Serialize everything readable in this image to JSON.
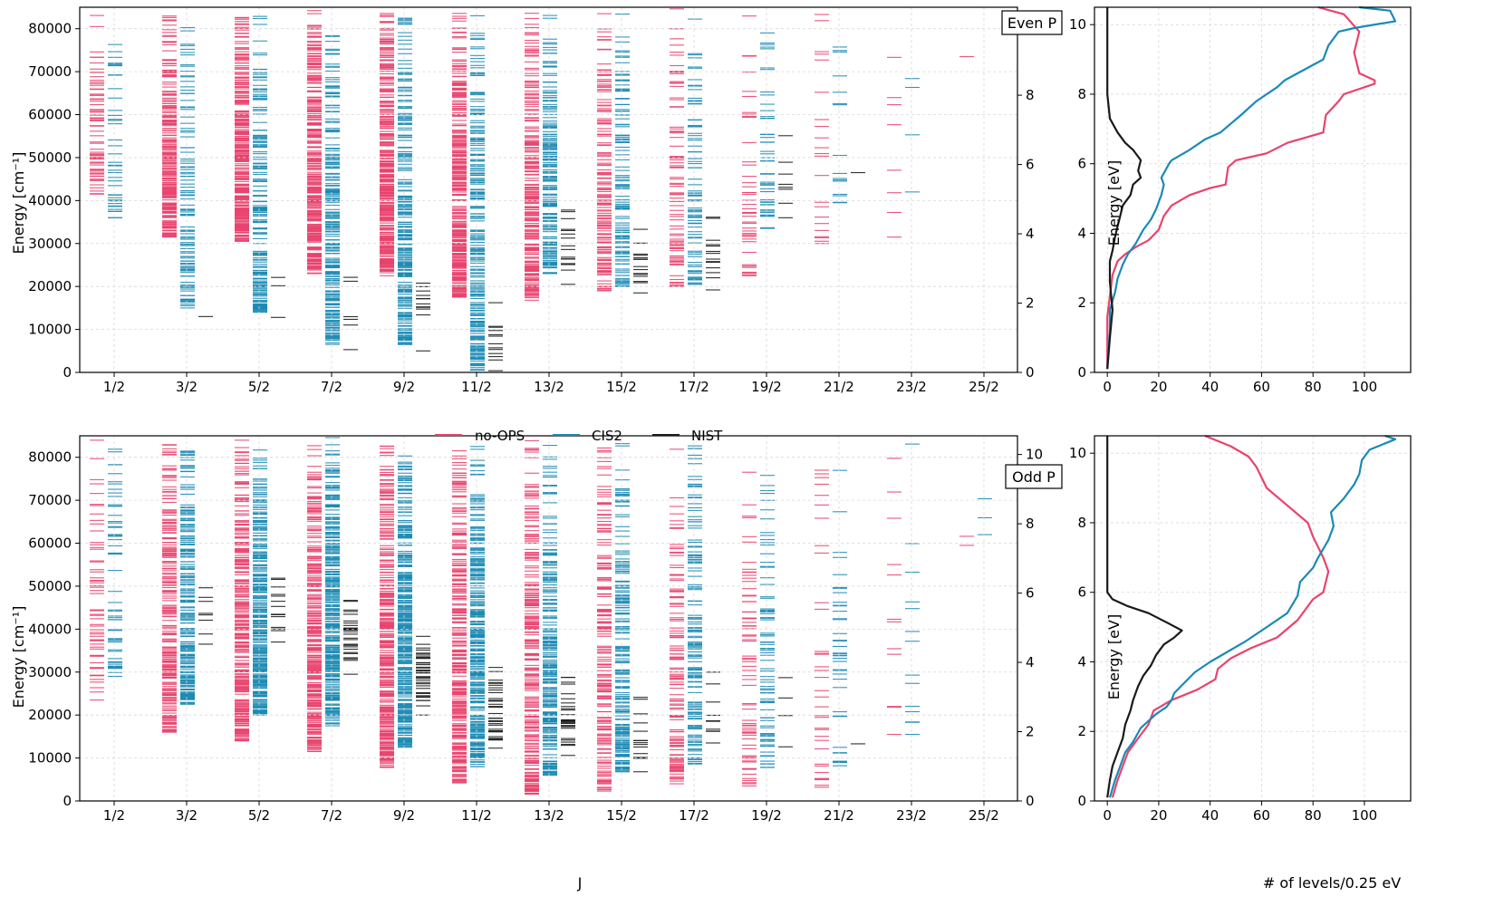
{
  "colors": {
    "no_ops": "#e8436d",
    "cis2": "#1a8ab4",
    "nist": "#1a1a1a",
    "grid": "#d8d8d8"
  },
  "legend": [
    {
      "key": "no_ops",
      "label": "no-OPS"
    },
    {
      "key": "cis2",
      "label": "CIS2"
    },
    {
      "key": "nist",
      "label": "NIST"
    }
  ],
  "shared_x_label": "J",
  "chart_data": [
    {
      "type": "level-diagram",
      "panel": "Even P",
      "box_label": "Even P",
      "xlabel": "",
      "ylabel": "Energy [cm⁻¹]",
      "ylabel_right": "Energy [eV]",
      "categories": [
        "1/2",
        "3/2",
        "5/2",
        "7/2",
        "9/2",
        "11/2",
        "13/2",
        "15/2",
        "17/2",
        "19/2",
        "21/2",
        "23/2",
        "25/2"
      ],
      "ylim": [
        0,
        85000
      ],
      "yticks": [
        "0",
        "10000",
        "20000",
        "30000",
        "40000",
        "50000",
        "60000",
        "70000",
        "80000"
      ],
      "yticks_right": [
        "0",
        "2",
        "4",
        "6",
        "8",
        "10"
      ],
      "series": [
        {
          "name": "no-OPS",
          "key": "no_ops",
          "min_energy_by_J": [
            41500,
            31500,
            30500,
            23000,
            22500,
            17500,
            16800,
            19000,
            20000,
            22500,
            30000,
            31500,
            73500
          ],
          "count_by_J": [
            70,
            260,
            300,
            320,
            350,
            330,
            240,
            150,
            80,
            45,
            22,
            8,
            1
          ]
        },
        {
          "name": "CIS2",
          "key": "cis2",
          "min_energy_by_J": [
            36000,
            15000,
            14000,
            6500,
            6500,
            500,
            23000,
            20000,
            20500,
            33500,
            39500,
            42000,
            0
          ],
          "count_by_J": [
            40,
            110,
            170,
            220,
            240,
            230,
            170,
            120,
            80,
            45,
            16,
            4,
            0
          ]
        },
        {
          "name": "NIST",
          "key": "nist",
          "min_energy_by_J": [
            null,
            13000,
            12800,
            5300,
            5000,
            400,
            20500,
            18500,
            19200,
            36000,
            46500,
            null,
            null
          ],
          "count_by_J": [
            0,
            1,
            3,
            6,
            12,
            13,
            16,
            15,
            14,
            8,
            1,
            0,
            0
          ]
        }
      ]
    },
    {
      "type": "level-diagram",
      "panel": "Odd P",
      "box_label": "Odd P",
      "xlabel": "J",
      "ylabel": "Energy [cm⁻¹]",
      "ylabel_right": "Energy [eV]",
      "categories": [
        "1/2",
        "3/2",
        "5/2",
        "7/2",
        "9/2",
        "11/2",
        "13/2",
        "15/2",
        "17/2",
        "19/2",
        "21/2",
        "23/2",
        "25/2"
      ],
      "ylim": [
        0,
        85000
      ],
      "yticks": [
        "0",
        "10000",
        "20000",
        "30000",
        "40000",
        "50000",
        "60000",
        "70000",
        "80000"
      ],
      "yticks_right": [
        "0",
        "2",
        "4",
        "6",
        "8",
        "10"
      ],
      "series": [
        {
          "name": "no-OPS",
          "key": "no_ops",
          "min_energy_by_J": [
            23500,
            16000,
            14000,
            11500,
            7800,
            4200,
            1600,
            2300,
            4000,
            3500,
            3200,
            15500,
            59500
          ],
          "count_by_J": [
            60,
            220,
            290,
            310,
            330,
            300,
            260,
            180,
            120,
            70,
            35,
            12,
            2
          ]
        },
        {
          "name": "CIS2",
          "key": "cis2",
          "min_energy_by_J": [
            29000,
            22500,
            20000,
            17500,
            12500,
            8000,
            6000,
            6800,
            8600,
            7800,
            8200,
            15500,
            62000
          ],
          "count_by_J": [
            55,
            200,
            280,
            300,
            320,
            300,
            240,
            190,
            140,
            80,
            40,
            14,
            3
          ]
        },
        {
          "name": "NIST",
          "key": "nist",
          "min_energy_by_J": [
            null,
            36500,
            37000,
            29500,
            20000,
            12300,
            10600,
            6800,
            13500,
            12600,
            13300,
            null,
            null
          ],
          "count_by_J": [
            0,
            8,
            14,
            30,
            36,
            34,
            30,
            14,
            10,
            4,
            1,
            0,
            0
          ]
        }
      ]
    },
    {
      "type": "line",
      "panel": "Even P density",
      "xlabel": "",
      "ylabel": "",
      "xlim": [
        -5,
        118
      ],
      "ylim": [
        0,
        10.5
      ],
      "xticks": [
        "0",
        "20",
        "40",
        "60",
        "80",
        "100"
      ],
      "yticks": [
        "0",
        "2",
        "4",
        "6",
        "8",
        "10"
      ],
      "series": [
        {
          "name": "no-OPS",
          "key": "no_ops",
          "points": [
            [
              0,
              0.1
            ],
            [
              0,
              1.6
            ],
            [
              1,
              2.2
            ],
            [
              2,
              2.8
            ],
            [
              4,
              3.2
            ],
            [
              7,
              3.4
            ],
            [
              11,
              3.6
            ],
            [
              16,
              3.8
            ],
            [
              20,
              4.1
            ],
            [
              22,
              4.5
            ],
            [
              25,
              4.8
            ],
            [
              32,
              5.1
            ],
            [
              40,
              5.3
            ],
            [
              46,
              5.4
            ],
            [
              47,
              5.9
            ],
            [
              50,
              6.1
            ],
            [
              62,
              6.3
            ],
            [
              70,
              6.6
            ],
            [
              84,
              6.9
            ],
            [
              85,
              7.4
            ],
            [
              90,
              7.8
            ],
            [
              92,
              8.0
            ],
            [
              104,
              8.3
            ],
            [
              104,
              8.4
            ],
            [
              98,
              8.6
            ],
            [
              96,
              9.2
            ],
            [
              98,
              9.8
            ],
            [
              92,
              10.3
            ],
            [
              82,
              10.5
            ]
          ]
        },
        {
          "name": "CIS2",
          "key": "cis2",
          "points": [
            [
              0,
              0.1
            ],
            [
              1,
              1.2
            ],
            [
              1,
              1.8
            ],
            [
              3,
              2.3
            ],
            [
              4,
              2.7
            ],
            [
              6,
              3.1
            ],
            [
              8,
              3.4
            ],
            [
              11,
              3.7
            ],
            [
              14,
              4.1
            ],
            [
              17,
              4.4
            ],
            [
              19,
              4.7
            ],
            [
              21,
              5.1
            ],
            [
              22,
              5.4
            ],
            [
              21,
              5.6
            ],
            [
              24,
              6.0
            ],
            [
              25,
              6.1
            ],
            [
              32,
              6.4
            ],
            [
              38,
              6.7
            ],
            [
              44,
              6.9
            ],
            [
              52,
              7.4
            ],
            [
              58,
              7.8
            ],
            [
              66,
              8.2
            ],
            [
              69,
              8.4
            ],
            [
              74,
              8.6
            ],
            [
              84,
              9.0
            ],
            [
              86,
              9.4
            ],
            [
              90,
              9.8
            ],
            [
              96,
              9.9
            ],
            [
              112,
              10.1
            ],
            [
              110,
              10.4
            ],
            [
              98,
              10.5
            ]
          ]
        },
        {
          "name": "NIST",
          "key": "nist",
          "points": [
            [
              0,
              0.1
            ],
            [
              1,
              1.0
            ],
            [
              2,
              1.8
            ],
            [
              1,
              2.6
            ],
            [
              1,
              3.2
            ],
            [
              2,
              3.5
            ],
            [
              3,
              3.9
            ],
            [
              4,
              4.2
            ],
            [
              5,
              4.5
            ],
            [
              6,
              4.8
            ],
            [
              9,
              5.1
            ],
            [
              10,
              5.4
            ],
            [
              13,
              5.6
            ],
            [
              12,
              5.8
            ],
            [
              13,
              6.1
            ],
            [
              10,
              6.4
            ],
            [
              7,
              6.6
            ],
            [
              4,
              6.9
            ],
            [
              1,
              7.3
            ],
            [
              0,
              8.0
            ],
            [
              0,
              10.5
            ]
          ]
        }
      ]
    },
    {
      "type": "line",
      "panel": "Odd P density",
      "xlabel": "# of levels/0.25 eV",
      "ylabel": "",
      "xlim": [
        -5,
        118
      ],
      "ylim": [
        0,
        10.5
      ],
      "xticks": [
        "0",
        "20",
        "40",
        "60",
        "80",
        "100"
      ],
      "yticks": [
        "0",
        "2",
        "4",
        "6",
        "8",
        "10"
      ],
      "series": [
        {
          "name": "no-OPS",
          "key": "no_ops",
          "points": [
            [
              2,
              0.1
            ],
            [
              4,
              0.6
            ],
            [
              6,
              1.0
            ],
            [
              8,
              1.4
            ],
            [
              12,
              1.8
            ],
            [
              16,
              2.2
            ],
            [
              18,
              2.6
            ],
            [
              25,
              2.9
            ],
            [
              35,
              3.2
            ],
            [
              42,
              3.5
            ],
            [
              43,
              3.8
            ],
            [
              48,
              4.1
            ],
            [
              56,
              4.4
            ],
            [
              66,
              4.7
            ],
            [
              74,
              5.2
            ],
            [
              80,
              5.8
            ],
            [
              84,
              6.0
            ],
            [
              86,
              6.6
            ],
            [
              84,
              7.0
            ],
            [
              80,
              7.6
            ],
            [
              78,
              8.0
            ],
            [
              70,
              8.5
            ],
            [
              62,
              9.0
            ],
            [
              58,
              9.6
            ],
            [
              55,
              9.9
            ],
            [
              48,
              10.2
            ],
            [
              38,
              10.5
            ]
          ]
        },
        {
          "name": "CIS2",
          "key": "cis2",
          "points": [
            [
              1,
              0.1
            ],
            [
              3,
              0.6
            ],
            [
              5,
              1.0
            ],
            [
              7,
              1.4
            ],
            [
              10,
              1.7
            ],
            [
              13,
              2.1
            ],
            [
              19,
              2.5
            ],
            [
              23,
              2.7
            ],
            [
              25,
              2.9
            ],
            [
              26,
              3.1
            ],
            [
              30,
              3.4
            ],
            [
              34,
              3.7
            ],
            [
              40,
              4.0
            ],
            [
              47,
              4.3
            ],
            [
              54,
              4.6
            ],
            [
              62,
              5.0
            ],
            [
              70,
              5.4
            ],
            [
              74,
              5.9
            ],
            [
              75,
              6.3
            ],
            [
              80,
              6.7
            ],
            [
              82,
              7.0
            ],
            [
              86,
              7.5
            ],
            [
              88,
              7.9
            ],
            [
              87,
              8.3
            ],
            [
              92,
              8.7
            ],
            [
              96,
              9.1
            ],
            [
              98,
              9.4
            ],
            [
              99,
              9.8
            ],
            [
              102,
              10.1
            ],
            [
              112,
              10.4
            ],
            [
              108,
              10.5
            ]
          ]
        },
        {
          "name": "NIST",
          "key": "nist",
          "points": [
            [
              0,
              0.1
            ],
            [
              1,
              0.6
            ],
            [
              2,
              1.0
            ],
            [
              4,
              1.4
            ],
            [
              6,
              1.8
            ],
            [
              7,
              2.2
            ],
            [
              9,
              2.6
            ],
            [
              10,
              2.9
            ],
            [
              12,
              3.3
            ],
            [
              14,
              3.6
            ],
            [
              17,
              3.9
            ],
            [
              19,
              4.2
            ],
            [
              22,
              4.5
            ],
            [
              26,
              4.7
            ],
            [
              29,
              4.9
            ],
            [
              24,
              5.1
            ],
            [
              16,
              5.4
            ],
            [
              8,
              5.6
            ],
            [
              2,
              5.8
            ],
            [
              0,
              6.0
            ],
            [
              0,
              10.5
            ]
          ]
        }
      ]
    }
  ]
}
